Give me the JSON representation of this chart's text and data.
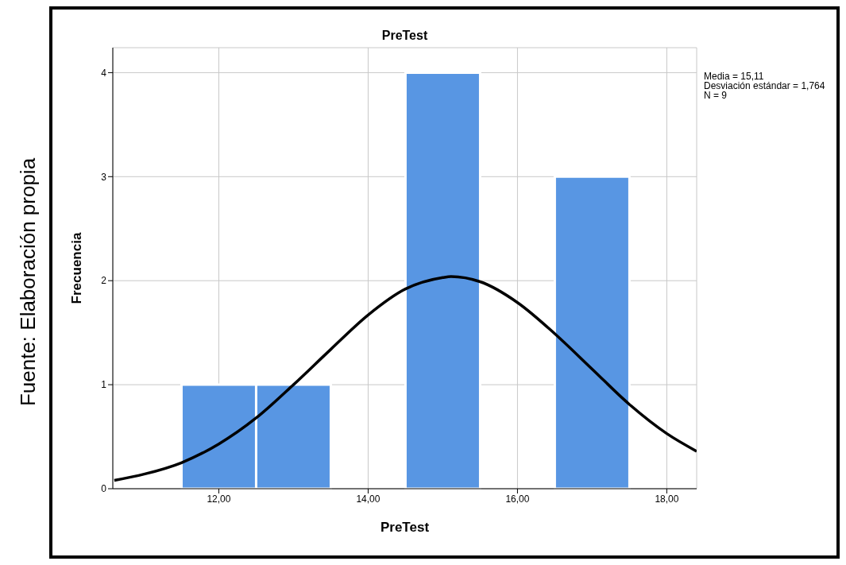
{
  "chart_data": {
    "type": "histogram",
    "title": "PreTest",
    "xlabel": "PreTest",
    "ylabel": "Frecuencia",
    "annotations": [
      "Fuente: Elaboración propia",
      "Media = 15,11",
      "Desviación estándar = 1,764",
      "N = 9"
    ],
    "xlim": [
      10.58,
      18.4
    ],
    "xticks": [
      {
        "value": 12,
        "label": "12,00"
      },
      {
        "value": 14,
        "label": "14,00"
      },
      {
        "value": 16,
        "label": "16,00"
      },
      {
        "value": 18,
        "label": "18,00"
      }
    ],
    "ylim": [
      0,
      4.24
    ],
    "yticks": [
      0,
      1,
      2,
      3,
      4
    ],
    "grid": true,
    "series": [
      {
        "color": "#5896e3",
        "bins": [
          11.5,
          12.5,
          13.5,
          14.5,
          15.5,
          16.5,
          17.5
        ],
        "values": [
          1,
          1,
          0,
          4,
          0,
          3
        ]
      },
      {
        "type": "line",
        "color": "#000000",
        "x": [
          10.6,
          11,
          11.5,
          12,
          12.5,
          13,
          13.5,
          14,
          14.5,
          15,
          15.11,
          15.5,
          16,
          16.5,
          17,
          17.5,
          18,
          18.4
        ],
        "values": [
          0.08,
          0.14,
          0.25,
          0.43,
          0.68,
          1.0,
          1.34,
          1.67,
          1.92,
          2.03,
          2.04,
          1.99,
          1.79,
          1.49,
          1.15,
          0.81,
          0.53,
          0.36
        ]
      }
    ]
  }
}
